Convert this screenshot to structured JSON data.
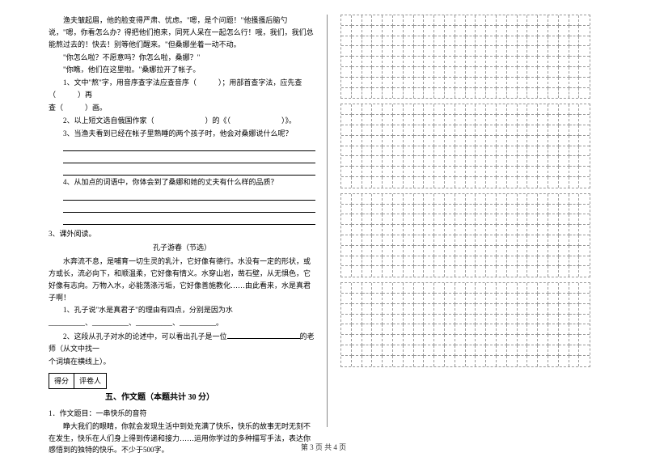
{
  "left": {
    "p1": "渔夫皱起眉，他的脸变得严肃、忧虑。\"嗯，是个问题！\"他搔搔后脑勺说，\"嗯，你看怎么办？得把他们抱来，同死人呆在一起怎么行！哦，我们，我们总能熬过去的！快去！别等他们醒来。\"但桑娜坐着一动不动。",
    "p2": "\"你怎么啦？不愿意吗？你怎么啦，桑娜？\"",
    "p3": "\"你瞧，他们在这里啦。\"桑娜拉开了帐子。",
    "q1a": "1、文中\"熬\"字，用音序查字法应查音序（　　　）；用部首查字法，应先查（　　　）再",
    "q1b": "查（　　　）画。",
    "q2": "2、以上短文选自俄国作家（　　　　　　　）的《（　　　　　　　）》。",
    "q3": "3、当渔夫看到已经在帐子里熟睡的两个孩子时，他会对桑娜说什么呢？",
    "q4": "4、从加点的词语中，你体会到了桑娜和她的丈夫有什么样的品质？",
    "out_label": "3、课外阅读。",
    "essay_title": "孔子游春（节选）",
    "e1": "水奔流不息，是哺育一切生灵的乳汁，它好像有德行。水没有一定的形状，或方或长，流必向下，和顺温柔，它好像有情义。水穿山岩，凿石壁，从无惧色，它好像有志向。万物入水，必能荡涤污垢，它好像善施教化……由此看来，水是真君子啊！",
    "eq1": "1、孔子说\"水是真君子\"的理由有四点，分别是因为水",
    "eq1b": "__________、__________、__________、__________。",
    "eq2a": "2、这段从孔子对水的论述中，可以看出孔子是一位",
    "eq2b": "的老师（从文中找一",
    "eq2c": "个词填在横线上）。",
    "score1": "得分",
    "score2": "评卷人",
    "section5": "五、作文题（本题共计 30 分）",
    "w1": "1．作文题目：一串快乐的音符",
    "w2": "睁大我们的眼睛，你就会发现生活中到处充满了快乐，快乐的故事无时无刻不在发生，快乐在人们身上得到传递和接力……运用你学过的多种描写手法，表达你感悟到的独特的快乐。不少于500字。"
  },
  "grid": {
    "blocks": 4,
    "rows_per_block": 8,
    "cols": 24,
    "border_color": "#999999",
    "cell_size": 12.8
  },
  "footer": "第 3 页 共 4 页",
  "colors": {
    "text": "#000000",
    "bg": "#ffffff",
    "grid": "#999999"
  }
}
